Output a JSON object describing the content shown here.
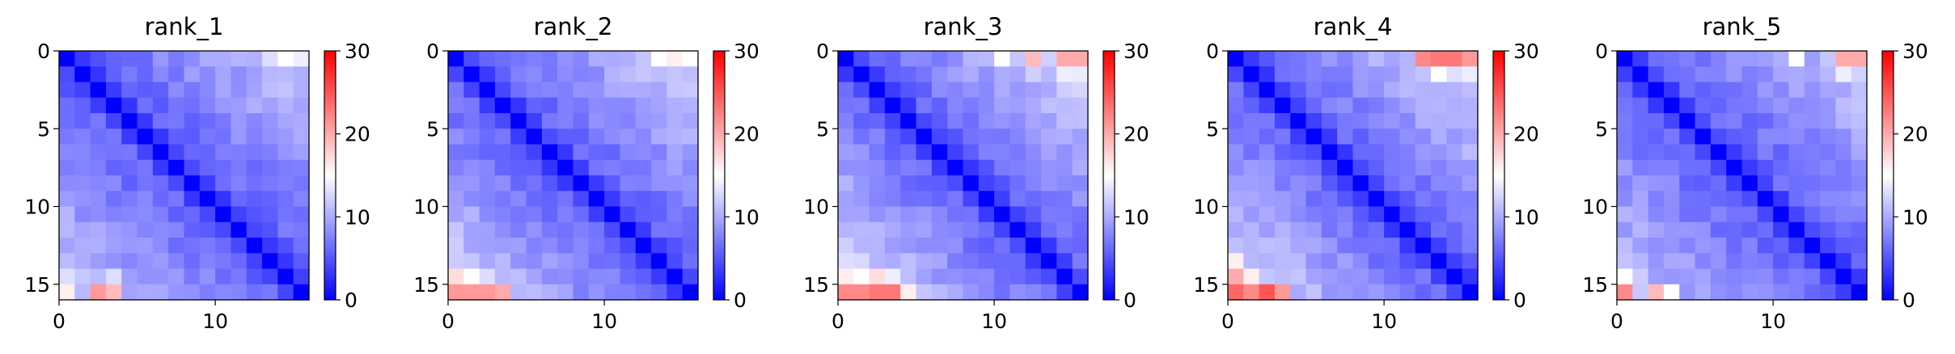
{
  "chart_data": [
    {
      "type": "heatmap",
      "title": "rank_1",
      "rows": 16,
      "cols": 16,
      "xlim": [
        0,
        16
      ],
      "ylim": [
        16,
        0
      ],
      "xticks": [
        "0",
        "10"
      ],
      "yticks": [
        "0",
        "5",
        "10",
        "15"
      ],
      "colorbar": {
        "min": 0,
        "max": 30,
        "ticks": [
          "0",
          "10",
          "20",
          "30"
        ],
        "colormap": "bwr"
      },
      "near_diag_value": 3,
      "off_diag_base": 5,
      "off_diag_slope": 0.45,
      "hot_cells": [
        [
          15,
          2,
          21
        ],
        [
          15,
          3,
          19
        ],
        [
          15,
          0,
          16
        ],
        [
          14,
          0,
          13
        ],
        [
          14,
          3,
          13
        ],
        [
          13,
          0,
          11
        ],
        [
          0,
          14,
          15
        ],
        [
          0,
          15,
          14
        ],
        [
          0,
          13,
          13
        ]
      ]
    },
    {
      "type": "heatmap",
      "title": "rank_2",
      "rows": 16,
      "cols": 16,
      "xlim": [
        0,
        16
      ],
      "ylim": [
        16,
        0
      ],
      "xticks": [
        "0",
        "10"
      ],
      "yticks": [
        "0",
        "5",
        "10",
        "15"
      ],
      "colorbar": {
        "min": 0,
        "max": 30,
        "ticks": [
          "0",
          "10",
          "20",
          "30"
        ],
        "colormap": "bwr"
      },
      "near_diag_value": 3,
      "off_diag_base": 5,
      "off_diag_slope": 0.5,
      "hot_cells": [
        [
          15,
          0,
          21
        ],
        [
          15,
          1,
          21
        ],
        [
          15,
          2,
          21
        ],
        [
          15,
          3,
          20
        ],
        [
          14,
          0,
          17
        ],
        [
          14,
          1,
          15
        ],
        [
          14,
          2,
          13
        ],
        [
          13,
          0,
          12
        ],
        [
          0,
          13,
          15
        ],
        [
          0,
          14,
          16
        ],
        [
          0,
          15,
          15
        ]
      ]
    },
    {
      "type": "heatmap",
      "title": "rank_3",
      "rows": 16,
      "cols": 16,
      "xlim": [
        0,
        16
      ],
      "ylim": [
        16,
        0
      ],
      "xticks": [
        "0",
        "10"
      ],
      "yticks": [
        "0",
        "5",
        "10",
        "15"
      ],
      "colorbar": {
        "min": 0,
        "max": 30,
        "ticks": [
          "0",
          "10",
          "20",
          "30"
        ],
        "colormap": "bwr"
      },
      "near_diag_value": 3,
      "off_diag_base": 5,
      "off_diag_slope": 0.55,
      "hot_cells": [
        [
          15,
          0,
          22
        ],
        [
          15,
          1,
          22
        ],
        [
          15,
          2,
          23
        ],
        [
          15,
          3,
          23
        ],
        [
          15,
          4,
          16
        ],
        [
          14,
          0,
          16
        ],
        [
          14,
          1,
          15
        ],
        [
          14,
          2,
          17
        ],
        [
          14,
          3,
          14
        ],
        [
          13,
          0,
          13
        ],
        [
          0,
          10,
          15
        ],
        [
          0,
          12,
          19
        ],
        [
          0,
          14,
          20
        ],
        [
          0,
          15,
          20
        ],
        [
          1,
          14,
          14
        ]
      ]
    },
    {
      "type": "heatmap",
      "title": "rank_4",
      "rows": 16,
      "cols": 16,
      "xlim": [
        0,
        16
      ],
      "ylim": [
        16,
        0
      ],
      "xticks": [
        "0",
        "10"
      ],
      "yticks": [
        "0",
        "5",
        "10",
        "15"
      ],
      "colorbar": {
        "min": 0,
        "max": 30,
        "ticks": [
          "0",
          "10",
          "20",
          "30"
        ],
        "colormap": "bwr"
      },
      "near_diag_value": 3,
      "off_diag_base": 5,
      "off_diag_slope": 0.55,
      "hot_cells": [
        [
          15,
          0,
          24
        ],
        [
          15,
          1,
          22
        ],
        [
          15,
          2,
          25
        ],
        [
          15,
          3,
          21
        ],
        [
          14,
          0,
          20
        ],
        [
          14,
          1,
          16
        ],
        [
          13,
          0,
          16
        ],
        [
          0,
          12,
          22
        ],
        [
          0,
          13,
          23
        ],
        [
          0,
          14,
          23
        ],
        [
          0,
          15,
          21
        ],
        [
          1,
          13,
          15
        ],
        [
          1,
          15,
          14
        ]
      ]
    },
    {
      "type": "heatmap",
      "title": "rank_5",
      "rows": 16,
      "cols": 16,
      "xlim": [
        0,
        16
      ],
      "ylim": [
        16,
        0
      ],
      "xticks": [
        "0",
        "10"
      ],
      "yticks": [
        "0",
        "5",
        "10",
        "15"
      ],
      "colorbar": {
        "min": 0,
        "max": 30,
        "ticks": [
          "0",
          "10",
          "20",
          "30"
        ],
        "colormap": "bwr"
      },
      "near_diag_value": 3,
      "off_diag_base": 5,
      "off_diag_slope": 0.45,
      "hot_cells": [
        [
          15,
          0,
          22
        ],
        [
          15,
          2,
          19
        ],
        [
          15,
          3,
          15
        ],
        [
          14,
          0,
          15
        ],
        [
          14,
          1,
          12
        ],
        [
          0,
          11,
          15
        ],
        [
          0,
          14,
          20
        ],
        [
          0,
          15,
          20
        ],
        [
          1,
          14,
          14
        ]
      ]
    }
  ]
}
